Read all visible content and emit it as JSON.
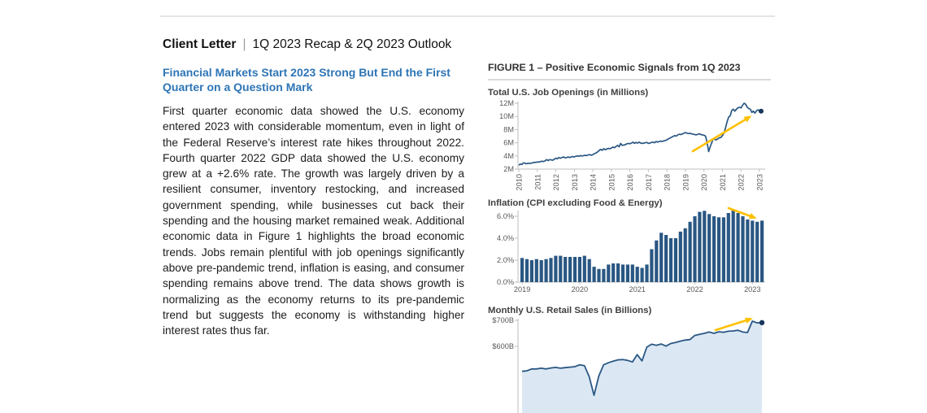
{
  "header": {
    "label": "Client Letter",
    "separator": "|",
    "subtitle": "1Q 2023 Recap & 2Q 2023 Outlook"
  },
  "article": {
    "heading": "Financial Markets Start 2023 Strong But End the First Quarter on a Question Mark",
    "body": "First quarter economic data showed the U.S. economy entered 2023 with considerable momentum, even in light of the Federal Reserve’s interest rate hikes throughout 2022. Fourth quarter 2022 GDP data showed the U.S. economy grew at a +2.6% rate. The growth was largely driven by a resilient consumer, inventory restocking, and increased government spending, while businesses cut back their spending and the housing market remained weak. Additional economic data in Figure 1 highlights the broad economic trends. Jobs remain plentiful with job openings significantly above pre-pandemic trend, inflation is easing, and consumer spending remains above trend. The data shows growth is normalizing as the economy returns to its pre-pandemic trend but suggests the economy is withstanding higher interest rates thus far."
  },
  "figure": {
    "title": "FIGURE 1 – Positive Economic Signals from 1Q 2023"
  },
  "colors": {
    "navy": "#2A5783",
    "navy_dark": "#17365D",
    "gold": "#FFC000",
    "heading_blue": "#2E75B6",
    "area_fill": "#DBE8F4",
    "axis_gray": "#BFBFBF",
    "label_gray": "#595959"
  },
  "chart_data": [
    {
      "type": "line",
      "title": "Total U.S. Job Openings (in Millions)",
      "x_start": "2010-01",
      "x_end": "2023-02",
      "x_tick_labels": [
        "2010",
        "2011",
        "2012",
        "2013",
        "2014",
        "2015",
        "2016",
        "2017",
        "2018",
        "2019",
        "2020",
        "2021",
        "2022",
        "2023"
      ],
      "y_tick_values": [
        2,
        4,
        6,
        8,
        10,
        12
      ],
      "y_tick_labels": [
        "2M",
        "4M",
        "6M",
        "8M",
        "10M",
        "12M"
      ],
      "ylim": [
        2,
        12
      ],
      "grid": false,
      "annotations": {
        "trend_arrow": "up",
        "end_dot": true
      },
      "values": [
        2.6,
        2.75,
        2.7,
        2.95,
        2.9,
        2.8,
        2.9,
        2.85,
        2.9,
        2.95,
        3.05,
        3.0,
        3.1,
        3.05,
        3.15,
        3.2,
        3.15,
        3.25,
        3.45,
        3.3,
        3.45,
        3.4,
        3.35,
        3.5,
        3.65,
        3.55,
        3.75,
        3.65,
        3.75,
        3.85,
        3.7,
        3.75,
        3.85,
        3.75,
        3.85,
        3.9,
        3.85,
        3.95,
        4.0,
        3.95,
        4.05,
        4.0,
        4.05,
        4.1,
        4.05,
        4.15,
        4.2,
        4.1,
        4.2,
        4.35,
        4.45,
        4.6,
        4.8,
        5.0,
        4.85,
        5.1,
        4.95,
        5.05,
        5.15,
        5.1,
        5.2,
        5.35,
        5.25,
        5.45,
        5.6,
        5.4,
        5.9,
        5.6,
        5.65,
        5.7,
        5.85,
        5.9,
        5.85,
        5.95,
        6.1,
        5.9,
        6.05,
        5.95,
        6.1,
        5.95,
        5.9,
        5.95,
        6.0,
        6.05,
        5.9,
        5.95,
        6.05,
        6.1,
        6.0,
        6.2,
        6.1,
        6.2,
        6.25,
        6.2,
        6.3,
        6.35,
        6.45,
        6.6,
        6.7,
        6.85,
        6.95,
        7.1,
        7.0,
        7.2,
        7.3,
        7.25,
        7.35,
        7.45,
        7.55,
        7.45,
        7.4,
        7.45,
        7.35,
        7.3,
        7.25,
        7.2,
        7.3,
        7.35,
        7.25,
        7.2,
        7.15,
        7.0,
        6.0,
        4.65,
        5.4,
        6.0,
        6.6,
        6.5,
        6.45,
        6.6,
        6.75,
        6.8,
        7.1,
        7.5,
        8.3,
        9.2,
        9.9,
        10.1,
        10.9,
        11.1,
        10.8,
        11.1,
        11.3,
        11.4,
        11.3,
        11.7,
        12.0,
        11.85,
        11.4,
        11.2,
        11.1,
        10.6,
        10.8,
        10.5,
        10.85,
        11.0,
        10.85,
        10.8
      ]
    },
    {
      "type": "bar",
      "title": "Inflation (CPI excluding Food & Energy)",
      "x_start": "2019-01",
      "x_end": "2023-03",
      "x_tick_labels": [
        "2019",
        "2020",
        "2021",
        "2022",
        "2023"
      ],
      "y_tick_values": [
        0,
        2,
        4,
        6
      ],
      "y_tick_labels": [
        "0.0%",
        "2.0%",
        "4.0%",
        "6.0%"
      ],
      "ylim": [
        0,
        6.8
      ],
      "grid": false,
      "annotations": {
        "trend_arrow": "down"
      },
      "values": [
        2.2,
        2.1,
        2.0,
        2.1,
        2.0,
        2.1,
        2.2,
        2.4,
        2.4,
        2.3,
        2.3,
        2.3,
        2.3,
        2.4,
        2.1,
        1.4,
        1.2,
        1.2,
        1.6,
        1.7,
        1.7,
        1.6,
        1.6,
        1.6,
        1.4,
        1.3,
        1.6,
        3.0,
        3.8,
        4.5,
        4.3,
        4.0,
        4.0,
        4.6,
        4.9,
        5.5,
        6.0,
        6.4,
        6.5,
        6.2,
        6.0,
        5.9,
        5.9,
        6.3,
        6.6,
        6.3,
        6.0,
        5.7,
        5.6,
        5.5,
        5.6
      ]
    },
    {
      "type": "area",
      "title": "Monthly U.S. Retail Sales (in Billions)",
      "x_start": "2019-01",
      "x_end": "2023-03",
      "y_tick_values": [
        700,
        600
      ],
      "y_tick_labels": [
        "$700B",
        "$600B"
      ],
      "grid": false,
      "partially_cut_off_at_page_bottom": true,
      "annotations": {
        "trend_arrow": "up",
        "end_dot": true
      },
      "values": [
        504,
        506,
        513,
        513,
        516,
        513,
        517,
        519,
        516,
        518,
        520,
        522,
        529,
        526,
        483,
        412,
        486,
        529,
        537,
        543,
        548,
        549,
        546,
        540,
        568,
        544,
        597,
        608,
        604,
        609,
        601,
        611,
        615,
        620,
        624,
        626,
        642,
        646,
        650,
        655,
        650,
        656,
        654,
        658,
        659,
        662,
        655,
        653,
        697,
        690,
        691
      ]
    }
  ]
}
